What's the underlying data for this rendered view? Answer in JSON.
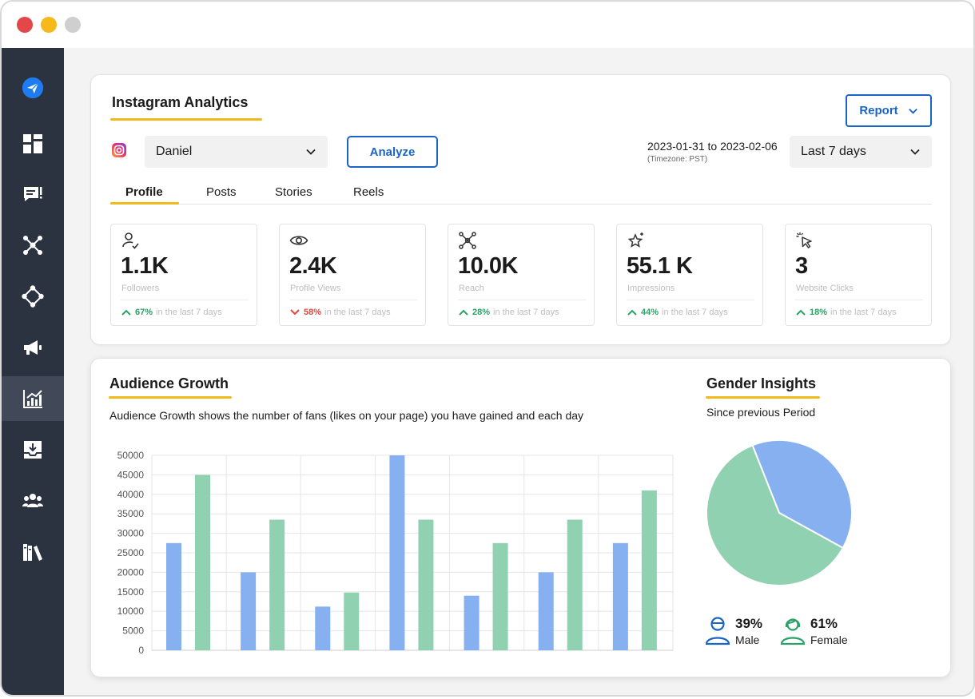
{
  "sidebar": {
    "items": [
      {
        "name": "send",
        "icon": "paper-plane-icon"
      },
      {
        "name": "dashboard",
        "icon": "dashboard-grid-icon"
      },
      {
        "name": "messages",
        "icon": "chat-list-icon"
      },
      {
        "name": "network",
        "icon": "network-nodes-icon"
      },
      {
        "name": "connections",
        "icon": "diamond-nodes-icon"
      },
      {
        "name": "campaigns",
        "icon": "megaphone-icon"
      },
      {
        "name": "analytics",
        "icon": "bar-chart-icon",
        "active": true
      },
      {
        "name": "downloads",
        "icon": "inbox-download-icon"
      },
      {
        "name": "team",
        "icon": "users-icon"
      },
      {
        "name": "library",
        "icon": "books-icon"
      }
    ]
  },
  "analytics": {
    "title": "Instagram Analytics",
    "report_label": "Report",
    "account": "Daniel",
    "analyze_label": "Analyze",
    "date_range": "2023-01-31 to 2023-02-06",
    "timezone": "(Timezone: PST)",
    "period": "Last 7 days",
    "tabs": [
      "Profile",
      "Posts",
      "Stories",
      "Reels"
    ],
    "active_tab": "Profile",
    "trend_suffix": "in the last 7 days",
    "metrics": [
      {
        "icon": "user-check-icon",
        "value": "1.1K",
        "label": "Followers",
        "change": "67%",
        "direction": "up"
      },
      {
        "icon": "eye-icon",
        "value": "2.4K",
        "label": "Profile Views",
        "change": "58%",
        "direction": "down"
      },
      {
        "icon": "reach-nodes-icon",
        "value": "10.0K",
        "label": "Reach",
        "change": "28%",
        "direction": "up"
      },
      {
        "icon": "star-sparkle-icon",
        "value": "55.1 K",
        "label": "Impressions",
        "change": "44%",
        "direction": "up"
      },
      {
        "icon": "cursor-click-icon",
        "value": "3",
        "label": "Website Clicks",
        "change": "18%",
        "direction": "up"
      }
    ]
  },
  "growth": {
    "title": "Audience Growth",
    "description": "Audience Growth shows the number of fans (likes on your page) you have gained and each day"
  },
  "gender": {
    "title": "Gender Insights",
    "subtitle": "Since previous Period",
    "male_label": "Male",
    "male_pct": "39%",
    "female_label": "Female",
    "female_pct": "61%"
  },
  "colors": {
    "blue_series": "#86b0ef",
    "green_series": "#90d1b1",
    "accent": "#1a64c8",
    "underline": "#f3b81a",
    "up": "#2aa167",
    "down": "#e2463d"
  },
  "chart_data": [
    {
      "type": "bar",
      "title": "",
      "xlabel": "",
      "ylabel": "",
      "ylim": [
        0,
        50000
      ],
      "yticks": [
        0,
        5000,
        10000,
        15000,
        20000,
        25000,
        30000,
        35000,
        40000,
        45000,
        50000
      ],
      "grid": true,
      "categories": [
        "",
        "",
        "",
        "",
        "",
        "",
        ""
      ],
      "series": [
        {
          "values": [
            27500,
            20000,
            11200,
            50000,
            14000,
            20000,
            27500
          ]
        },
        {
          "values": [
            45000,
            33500,
            14800,
            33500,
            27500,
            33500,
            41000
          ]
        }
      ]
    },
    {
      "type": "pie",
      "title": "Gender Insights",
      "labels": [
        "Male",
        "Female"
      ],
      "values": [
        39,
        61
      ]
    }
  ]
}
